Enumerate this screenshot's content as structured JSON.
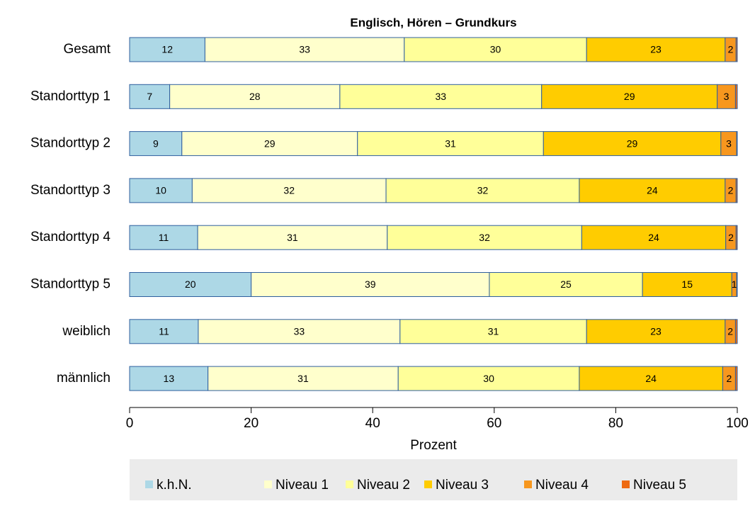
{
  "chart_data": {
    "type": "stacked-bar-horizontal",
    "title": "Englisch, Hören – Grundkurs",
    "xlabel": "Prozent",
    "categories": [
      "Gesamt",
      "Standorttyp 1",
      "Standorttyp 2",
      "Standorttyp 3",
      "Standorttyp 4",
      "Standorttyp 5",
      "weiblich",
      "männlich"
    ],
    "series": [
      {
        "name": "k.h.N.",
        "color": "#add8e6",
        "values": [
          12.4,
          6.6,
          8.6,
          10.3,
          11.2,
          20.0,
          11.3,
          12.9
        ],
        "value_labels": [
          "12",
          "7",
          "9",
          "10",
          "11",
          "20",
          "11",
          "13"
        ]
      },
      {
        "name": "Niveau 1",
        "color": "#ffffcc",
        "values": [
          32.8,
          28.0,
          28.9,
          31.9,
          31.2,
          39.2,
          33.2,
          31.3
        ],
        "value_labels": [
          "33",
          "28",
          "29",
          "32",
          "31",
          "39",
          "33",
          "31"
        ]
      },
      {
        "name": "Niveau 2",
        "color": "#ffff99",
        "values": [
          30.0,
          33.2,
          30.6,
          31.8,
          32.0,
          25.2,
          30.7,
          29.8
        ],
        "value_labels": [
          "30",
          "33",
          "31",
          "32",
          "32",
          "25",
          "31",
          "30"
        ]
      },
      {
        "name": "Niveau 3",
        "color": "#ffcc00",
        "values": [
          22.8,
          28.9,
          29.2,
          24.0,
          23.7,
          14.7,
          22.8,
          23.6
        ],
        "value_labels": [
          "23",
          "29",
          "29",
          "24",
          "24",
          "15",
          "23",
          "24"
        ]
      },
      {
        "name": "Niveau 4",
        "color": "#f7971e",
        "values": [
          1.8,
          3.0,
          2.6,
          1.8,
          1.7,
          0.8,
          1.7,
          2.1
        ],
        "value_labels": [
          "2",
          "3",
          "3",
          "2",
          "2",
          "1",
          "2",
          "2"
        ]
      },
      {
        "name": "Niveau 5",
        "color": "#ee6a12",
        "values": [
          0.2,
          0.3,
          0.1,
          0.2,
          0.2,
          0.1,
          0.3,
          0.3
        ]
      }
    ],
    "xlim": [
      0,
      100
    ],
    "xticks": [
      0,
      20,
      40,
      60,
      80,
      100
    ]
  }
}
